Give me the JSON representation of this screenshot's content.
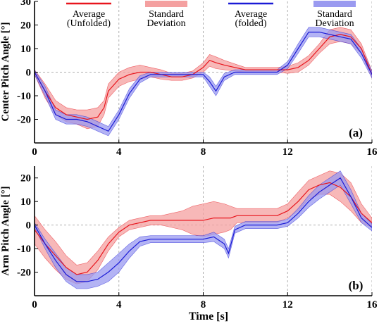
{
  "colors": {
    "unfolded_line": "#e8141c",
    "unfolded_band": "#f4a0a0",
    "folded_line": "#1a1ad6",
    "folded_band": "#9a9af0"
  },
  "legend": [
    {
      "line1": "Average",
      "line2": "(Unfolded)",
      "kind": "line",
      "color": "#e8141c"
    },
    {
      "line1": "Standard",
      "line2": "Deviation",
      "kind": "band",
      "color": "#f4a0a0"
    },
    {
      "line1": "Average",
      "line2": "(folded)",
      "kind": "line",
      "color": "#1a1ad6"
    },
    {
      "line1": "Standard",
      "line2": "Deviation",
      "kind": "band",
      "color": "#9a9af0"
    }
  ],
  "chart_data": [
    {
      "type": "area",
      "panel": "(a)",
      "xlabel": "",
      "ylabel": "Center Pitch Angle [°]",
      "xlim": [
        0,
        16
      ],
      "ylim": [
        -30,
        30
      ],
      "xticks": [
        0,
        4,
        8,
        12,
        16
      ],
      "yticks": [
        -20,
        -10,
        0,
        10,
        20,
        30
      ],
      "series": [
        {
          "name": "Average (Unfolded)",
          "x": [
            0,
            0.5,
            1,
            1.5,
            2,
            2.5,
            3,
            3.3,
            3.5,
            4,
            4.5,
            5,
            5.5,
            6,
            6.5,
            7,
            7.5,
            8,
            8.3,
            8.6,
            9,
            9.5,
            10,
            10.5,
            11,
            11.5,
            12,
            12.5,
            13,
            13.5,
            14,
            14.5,
            15,
            15.5,
            16
          ],
          "mean": [
            0,
            -8,
            -15,
            -18,
            -19,
            -20,
            -19,
            -15,
            -8,
            -3,
            -1,
            0,
            0,
            -1,
            -2,
            -2,
            -1,
            2,
            5,
            4,
            3,
            2,
            1,
            1,
            1,
            1,
            1,
            2,
            5,
            10,
            15,
            16,
            15,
            10,
            -1
          ],
          "sd": [
            1,
            3,
            3,
            3,
            3,
            4,
            4,
            3,
            3,
            3,
            3,
            3,
            2,
            2,
            1.5,
            1.5,
            1.5,
            2,
            2.5,
            2.5,
            2,
            1.5,
            1,
            1,
            1,
            1,
            1.5,
            2,
            2,
            2,
            3,
            3,
            3,
            2,
            1.5
          ]
        },
        {
          "name": "Average (folded)",
          "x": [
            0,
            0.5,
            1,
            1.5,
            2,
            2.5,
            3,
            3.5,
            4,
            4.5,
            5,
            5.5,
            6,
            6.5,
            7,
            7.5,
            8,
            8.3,
            8.6,
            9,
            9.5,
            10,
            10.5,
            11,
            11.5,
            12,
            12.5,
            13,
            13.5,
            14,
            14.5,
            15,
            15.5,
            16
          ],
          "mean": [
            0,
            -8,
            -18,
            -20,
            -20,
            -21,
            -23,
            -25,
            -18,
            -9,
            -3,
            -1,
            -1,
            -1,
            -1,
            -1,
            -1,
            -4,
            -8,
            -2,
            0,
            0,
            0,
            0,
            0,
            3,
            10,
            17,
            17,
            16,
            15,
            14,
            8,
            -1
          ],
          "sd": [
            1,
            2,
            2,
            2,
            2,
            2,
            2,
            2,
            2,
            2,
            1.5,
            1,
            1,
            1,
            1,
            1,
            1,
            2,
            2,
            1.5,
            1,
            1,
            1,
            1,
            1,
            1.5,
            2,
            2,
            2,
            2,
            2,
            2,
            2,
            1.5
          ]
        }
      ]
    },
    {
      "type": "area",
      "panel": "(b)",
      "xlabel": "Time [s]",
      "ylabel": "Arm Pitch Angle [°]",
      "xlim": [
        0,
        16
      ],
      "ylim": [
        -30,
        25
      ],
      "xticks": [
        0,
        4,
        8,
        12,
        16
      ],
      "yticks": [
        -20,
        -10,
        0,
        10,
        20
      ],
      "series": [
        {
          "name": "Average (Unfolded)",
          "x": [
            0,
            0.5,
            1,
            1.5,
            2,
            2.5,
            3,
            3.5,
            4,
            4.5,
            5,
            5.5,
            6,
            6.5,
            7,
            7.5,
            8,
            8.5,
            9,
            9.3,
            9.6,
            10,
            10.5,
            11,
            11.5,
            12,
            12.5,
            13,
            13.5,
            14,
            14.5,
            15,
            15.5,
            16
          ],
          "mean": [
            -2,
            -8,
            -13,
            -18,
            -21,
            -20,
            -15,
            -8,
            -3,
            0,
            1,
            2,
            2,
            2,
            2,
            2,
            2,
            3,
            3,
            3,
            4,
            4,
            4,
            4,
            4,
            6,
            10,
            15,
            17,
            18,
            16,
            12,
            5,
            1
          ],
          "sd": [
            6,
            6,
            6,
            5,
            4,
            4,
            4,
            3,
            2,
            2,
            2,
            2,
            2,
            3,
            4,
            6,
            7,
            7,
            6,
            5,
            3,
            3,
            3,
            3,
            3,
            3,
            4,
            4,
            4,
            5,
            6,
            6,
            4,
            2
          ]
        },
        {
          "name": "Average (folded)",
          "x": [
            0,
            0.5,
            1,
            1.5,
            2,
            2.5,
            3,
            3.5,
            4,
            4.5,
            5,
            5.5,
            6,
            6.5,
            7,
            7.5,
            8,
            8.5,
            9,
            9.2,
            9.5,
            10,
            10.5,
            11,
            11.5,
            12,
            12.5,
            13,
            13.5,
            14,
            14.5,
            15,
            15.5,
            16
          ],
          "mean": [
            0,
            -8,
            -15,
            -21,
            -24,
            -24,
            -23,
            -20,
            -16,
            -11,
            -7,
            -6,
            -6,
            -6,
            -6,
            -6,
            -6,
            -5,
            -8,
            -12,
            -2,
            0,
            0,
            0,
            0,
            1,
            5,
            10,
            14,
            17,
            20,
            12,
            3,
            -1
          ],
          "sd": [
            1,
            2,
            3,
            3,
            3,
            3,
            3,
            4,
            4,
            3,
            2,
            1.5,
            1.5,
            1.5,
            1.5,
            1.5,
            1.5,
            2,
            2,
            2,
            1.5,
            1.5,
            1.5,
            1.5,
            1.5,
            1.5,
            2,
            2.5,
            3,
            3,
            3,
            3,
            2,
            1.5
          ]
        }
      ]
    }
  ]
}
